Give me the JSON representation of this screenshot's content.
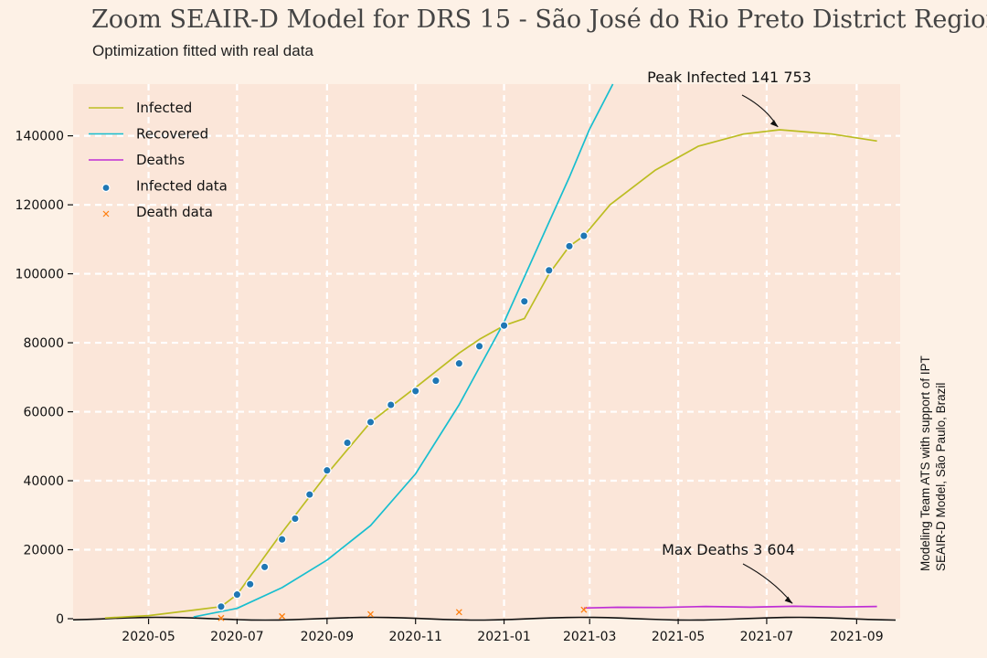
{
  "title": "Zoom SEAIR-D Model for DRS 15 - São José do Rio Preto District Region",
  "subtitle": "Optimization fitted with real data",
  "side_note": {
    "line1": "Modeling Team ATS with support of IPT",
    "line2": "SEAIR-D Model, São Paulo, Brazil"
  },
  "chart_data": {
    "type": "line",
    "title": "Zoom SEAIR-D Model for DRS 15 - São José do Rio Preto District Region",
    "subtitle": "Optimization fitted with real data",
    "xlabel": "",
    "ylabel": "",
    "xlim": [
      "2020-03-10",
      "2021-10-01"
    ],
    "ylim": [
      0,
      155000
    ],
    "grid": true,
    "legend": "top-left",
    "x_ticks": [
      "2020-05",
      "2020-07",
      "2020-09",
      "2020-11",
      "2021-01",
      "2021-03",
      "2021-05",
      "2021-07",
      "2021-09"
    ],
    "y_ticks": [
      0,
      20000,
      40000,
      60000,
      80000,
      100000,
      120000,
      140000
    ],
    "series": [
      {
        "name": "Infected",
        "color": "#bcbd22",
        "points": [
          [
            "2020-04-01",
            200
          ],
          [
            "2020-05-01",
            900
          ],
          [
            "2020-06-01",
            2500
          ],
          [
            "2020-06-20",
            3500
          ],
          [
            "2020-07-01",
            7000
          ],
          [
            "2020-08-01",
            25000
          ],
          [
            "2020-09-01",
            42000
          ],
          [
            "2020-10-01",
            57000
          ],
          [
            "2020-11-01",
            67000
          ],
          [
            "2020-12-01",
            77000
          ],
          [
            "2020-12-15",
            81000
          ],
          [
            "2021-01-01",
            85000
          ],
          [
            "2021-01-15",
            87000
          ],
          [
            "2021-02-01",
            100000
          ],
          [
            "2021-02-15",
            108000
          ],
          [
            "2021-02-25",
            111000
          ],
          [
            "2021-03-15",
            120000
          ],
          [
            "2021-04-15",
            130000
          ],
          [
            "2021-05-15",
            137000
          ],
          [
            "2021-06-15",
            140500
          ],
          [
            "2021-07-10",
            141753
          ],
          [
            "2021-08-15",
            140500
          ],
          [
            "2021-09-15",
            138500
          ]
        ]
      },
      {
        "name": "Recovered",
        "color": "#17becf",
        "points": [
          [
            "2020-06-01",
            500
          ],
          [
            "2020-07-01",
            3000
          ],
          [
            "2020-08-01",
            9000
          ],
          [
            "2020-09-01",
            17000
          ],
          [
            "2020-10-01",
            27000
          ],
          [
            "2020-11-01",
            42000
          ],
          [
            "2020-12-01",
            62000
          ],
          [
            "2021-01-01",
            86000
          ],
          [
            "2021-02-01",
            115000
          ],
          [
            "2021-02-15",
            128000
          ],
          [
            "2021-03-01",
            142000
          ],
          [
            "2021-03-17",
            156000
          ]
        ]
      },
      {
        "name": "Deaths",
        "color": "#bf2fd5",
        "points": [
          [
            "2021-02-25",
            3100
          ],
          [
            "2021-03-20",
            3300
          ],
          [
            "2021-04-20",
            3250
          ],
          [
            "2021-05-20",
            3550
          ],
          [
            "2021-06-20",
            3350
          ],
          [
            "2021-07-20",
            3604
          ],
          [
            "2021-08-20",
            3400
          ],
          [
            "2021-09-15",
            3550
          ]
        ]
      },
      {
        "name": "Infected data",
        "color": "#1f77b4",
        "marker": "circle",
        "points": [
          [
            "2020-06-20",
            3500
          ],
          [
            "2020-07-01",
            7000
          ],
          [
            "2020-07-10",
            10000
          ],
          [
            "2020-07-20",
            15000
          ],
          [
            "2020-08-01",
            23000
          ],
          [
            "2020-08-10",
            29000
          ],
          [
            "2020-08-20",
            36000
          ],
          [
            "2020-09-01",
            43000
          ],
          [
            "2020-09-15",
            51000
          ],
          [
            "2020-10-01",
            57000
          ],
          [
            "2020-10-15",
            62000
          ],
          [
            "2020-11-01",
            66000
          ],
          [
            "2020-11-15",
            69000
          ],
          [
            "2020-12-01",
            74000
          ],
          [
            "2020-12-15",
            79000
          ],
          [
            "2021-01-01",
            85000
          ],
          [
            "2021-01-15",
            92000
          ],
          [
            "2021-02-01",
            101000
          ],
          [
            "2021-02-15",
            108000
          ],
          [
            "2021-02-25",
            111000
          ]
        ]
      },
      {
        "name": "Death data",
        "color": "#ff7f0e",
        "marker": "x",
        "points": [
          [
            "2020-06-20",
            200
          ],
          [
            "2020-08-01",
            700
          ],
          [
            "2020-10-01",
            1300
          ],
          [
            "2020-12-01",
            1900
          ],
          [
            "2021-02-25",
            2600
          ]
        ]
      }
    ],
    "annotations": [
      {
        "text": "Peak Infected 141 753",
        "x": "2021-07-10",
        "y": 141753
      },
      {
        "text": "Max Deaths 3 604",
        "x": "2021-07-20",
        "y": 3604
      }
    ]
  }
}
